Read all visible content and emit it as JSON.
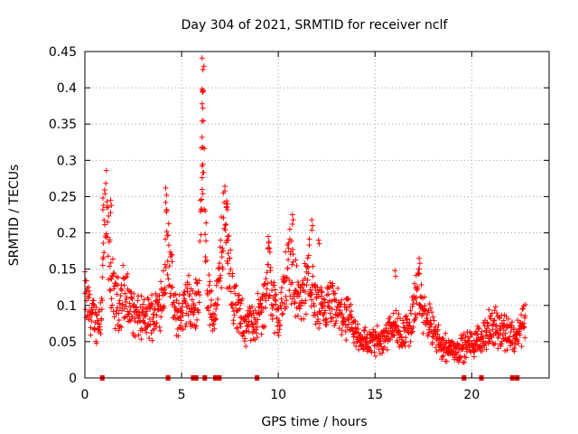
{
  "chart_data": {
    "type": "scatter",
    "title": "Day 304 of 2021, SRMTID for receiver nclf",
    "xlabel": "GPS time / hours",
    "ylabel": "SRMTID / TECUs",
    "xlim": [
      0,
      24
    ],
    "ylim": [
      0,
      0.45
    ],
    "x_ticks": [
      0,
      5,
      10,
      15,
      20
    ],
    "x_tick_labels": [
      "0",
      "5",
      "10",
      "15",
      "20"
    ],
    "y_ticks": [
      0,
      0.05,
      0.1,
      0.15,
      0.2,
      0.25,
      0.3,
      0.35,
      0.4,
      0.45
    ],
    "y_tick_labels": [
      "0",
      "0.05",
      "0.1",
      "0.15",
      "0.2",
      "0.25",
      "0.3",
      "0.35",
      "0.4",
      "0.45"
    ],
    "grid": true,
    "marker": "plus",
    "color": "#ff0000",
    "trend": [
      [
        0.0,
        0.11
      ],
      [
        0.3,
        0.09
      ],
      [
        0.6,
        0.075
      ],
      [
        0.8,
        0.085
      ],
      [
        0.9,
        0.12
      ],
      [
        1.0,
        0.2
      ],
      [
        1.1,
        0.22
      ],
      [
        1.3,
        0.15
      ],
      [
        1.5,
        0.11
      ],
      [
        1.8,
        0.1
      ],
      [
        2.0,
        0.12
      ],
      [
        2.3,
        0.1
      ],
      [
        2.6,
        0.085
      ],
      [
        3.0,
        0.08
      ],
      [
        3.4,
        0.085
      ],
      [
        3.8,
        0.095
      ],
      [
        4.1,
        0.13
      ],
      [
        4.25,
        0.2
      ],
      [
        4.4,
        0.16
      ],
      [
        4.6,
        0.09
      ],
      [
        5.0,
        0.085
      ],
      [
        5.3,
        0.11
      ],
      [
        5.6,
        0.09
      ],
      [
        5.9,
        0.12
      ],
      [
        6.05,
        0.28
      ],
      [
        6.15,
        0.36
      ],
      [
        6.3,
        0.13
      ],
      [
        6.6,
        0.08
      ],
      [
        6.9,
        0.12
      ],
      [
        7.2,
        0.22
      ],
      [
        7.4,
        0.18
      ],
      [
        7.6,
        0.12
      ],
      [
        7.9,
        0.09
      ],
      [
        8.3,
        0.07
      ],
      [
        8.8,
        0.08
      ],
      [
        9.3,
        0.1
      ],
      [
        9.5,
        0.15
      ],
      [
        9.8,
        0.1
      ],
      [
        10.0,
        0.08
      ],
      [
        10.3,
        0.12
      ],
      [
        10.6,
        0.17
      ],
      [
        10.9,
        0.12
      ],
      [
        11.2,
        0.1
      ],
      [
        11.6,
        0.15
      ],
      [
        11.9,
        0.1
      ],
      [
        12.3,
        0.09
      ],
      [
        12.7,
        0.1
      ],
      [
        13.1,
        0.09
      ],
      [
        13.6,
        0.08
      ],
      [
        14.0,
        0.06
      ],
      [
        14.5,
        0.05
      ],
      [
        15.0,
        0.05
      ],
      [
        15.5,
        0.055
      ],
      [
        15.9,
        0.08
      ],
      [
        16.3,
        0.06
      ],
      [
        16.8,
        0.07
      ],
      [
        17.2,
        0.12
      ],
      [
        17.5,
        0.09
      ],
      [
        17.9,
        0.07
      ],
      [
        18.3,
        0.05
      ],
      [
        18.8,
        0.04
      ],
      [
        19.3,
        0.04
      ],
      [
        19.8,
        0.045
      ],
      [
        20.3,
        0.05
      ],
      [
        20.8,
        0.065
      ],
      [
        21.3,
        0.07
      ],
      [
        21.8,
        0.065
      ],
      [
        22.2,
        0.055
      ],
      [
        22.5,
        0.065
      ],
      [
        22.8,
        0.09
      ]
    ],
    "spikes": [
      {
        "x": 0.95,
        "values": [
          0.248,
          0.238,
          0.232
        ]
      },
      {
        "x": 1.35,
        "values": [
          0.245,
          0.238,
          0.228
        ]
      },
      {
        "x": 4.2,
        "values": [
          0.262,
          0.252,
          0.242,
          0.232
        ]
      },
      {
        "x": 6.08,
        "values": [
          0.441,
          0.425,
          0.398,
          0.395,
          0.378,
          0.372,
          0.354,
          0.318,
          0.292,
          0.283,
          0.276,
          0.254,
          0.232
        ]
      },
      {
        "x": 7.35,
        "values": [
          0.244,
          0.24,
          0.236,
          0.232
        ]
      },
      {
        "x": 9.5,
        "values": [
          0.195,
          0.188,
          0.178
        ]
      },
      {
        "x": 10.75,
        "values": [
          0.225,
          0.218,
          0.212
        ]
      },
      {
        "x": 11.75,
        "values": [
          0.218,
          0.21,
          0.204
        ]
      },
      {
        "x": 12.1,
        "values": [
          0.19,
          0.185
        ]
      },
      {
        "x": 16.05,
        "values": [
          0.148,
          0.14
        ]
      },
      {
        "x": 17.3,
        "values": [
          0.165,
          0.158
        ]
      }
    ],
    "flag_markers_x": [
      0.9,
      4.3,
      5.6,
      5.75,
      6.2,
      6.75,
      6.95,
      8.9,
      19.6,
      20.5,
      22.1,
      22.35
    ]
  }
}
